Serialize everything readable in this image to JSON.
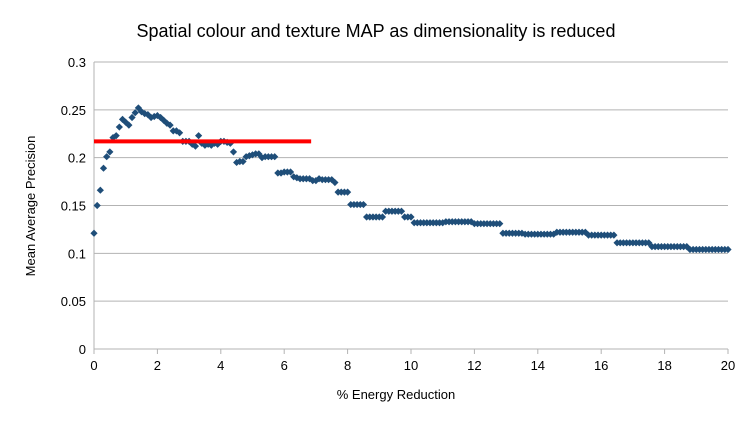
{
  "chart_data": {
    "type": "scatter",
    "title": "Spatial colour and texture MAP as dimensionality is reduced",
    "xlabel": "% Energy Reduction",
    "ylabel": "Mean Average Precision",
    "xlim": [
      0,
      20
    ],
    "ylim": [
      0,
      0.3
    ],
    "xticks": [
      "0",
      "2",
      "4",
      "6",
      "8",
      "10",
      "12",
      "14",
      "16",
      "18",
      "20"
    ],
    "yticks": [
      "0",
      "0.05",
      "0.1",
      "0.15",
      "0.2",
      "0.25",
      "0.3"
    ],
    "grid": "horizontal",
    "legend": "none",
    "marker_color": "#1f4e79",
    "reference_line": {
      "x": [
        0,
        6.85
      ],
      "y": 0.217,
      "color": "#ff0000"
    },
    "points": [
      [
        0.0,
        0.121
      ],
      [
        0.1,
        0.15
      ],
      [
        0.2,
        0.166
      ],
      [
        0.3,
        0.189
      ],
      [
        0.4,
        0.201
      ],
      [
        0.5,
        0.206
      ],
      [
        0.6,
        0.221
      ],
      [
        0.7,
        0.223
      ],
      [
        0.8,
        0.232
      ],
      [
        0.9,
        0.24
      ],
      [
        1.0,
        0.237
      ],
      [
        1.1,
        0.234
      ],
      [
        1.2,
        0.242
      ],
      [
        1.3,
        0.247
      ],
      [
        1.4,
        0.252
      ],
      [
        1.5,
        0.248
      ],
      [
        1.6,
        0.246
      ],
      [
        1.7,
        0.245
      ],
      [
        1.8,
        0.242
      ],
      [
        1.9,
        0.243
      ],
      [
        2.0,
        0.244
      ],
      [
        2.1,
        0.242
      ],
      [
        2.2,
        0.239
      ],
      [
        2.3,
        0.236
      ],
      [
        2.4,
        0.234
      ],
      [
        2.5,
        0.228
      ],
      [
        2.6,
        0.228
      ],
      [
        2.7,
        0.226
      ],
      [
        2.8,
        0.217
      ],
      [
        2.9,
        0.217
      ],
      [
        3.0,
        0.217
      ],
      [
        3.1,
        0.214
      ],
      [
        3.2,
        0.212
      ],
      [
        3.3,
        0.223
      ],
      [
        3.4,
        0.215
      ],
      [
        3.5,
        0.213
      ],
      [
        3.6,
        0.214
      ],
      [
        3.7,
        0.213
      ],
      [
        3.8,
        0.215
      ],
      [
        3.9,
        0.214
      ],
      [
        4.0,
        0.217
      ],
      [
        4.1,
        0.217
      ],
      [
        4.2,
        0.216
      ],
      [
        4.3,
        0.215
      ],
      [
        4.4,
        0.206
      ],
      [
        4.5,
        0.195
      ],
      [
        4.6,
        0.196
      ],
      [
        4.7,
        0.196
      ],
      [
        4.8,
        0.201
      ],
      [
        4.9,
        0.202
      ],
      [
        5.0,
        0.203
      ],
      [
        5.1,
        0.204
      ],
      [
        5.2,
        0.204
      ],
      [
        5.3,
        0.2
      ],
      [
        5.4,
        0.201
      ],
      [
        5.5,
        0.201
      ],
      [
        5.6,
        0.201
      ],
      [
        5.7,
        0.201
      ],
      [
        5.8,
        0.184
      ],
      [
        5.9,
        0.184
      ],
      [
        6.0,
        0.185
      ],
      [
        6.1,
        0.185
      ],
      [
        6.2,
        0.185
      ],
      [
        6.3,
        0.18
      ],
      [
        6.4,
        0.179
      ],
      [
        6.5,
        0.178
      ],
      [
        6.6,
        0.178
      ],
      [
        6.7,
        0.178
      ],
      [
        6.8,
        0.178
      ],
      [
        6.9,
        0.176
      ],
      [
        7.0,
        0.176
      ],
      [
        7.1,
        0.178
      ],
      [
        7.2,
        0.177
      ],
      [
        7.3,
        0.177
      ],
      [
        7.4,
        0.177
      ],
      [
        7.5,
        0.177
      ],
      [
        7.6,
        0.174
      ],
      [
        7.7,
        0.164
      ],
      [
        7.8,
        0.164
      ],
      [
        7.9,
        0.164
      ],
      [
        8.0,
        0.164
      ],
      [
        8.1,
        0.151
      ],
      [
        8.2,
        0.151
      ],
      [
        8.3,
        0.151
      ],
      [
        8.4,
        0.151
      ],
      [
        8.5,
        0.151
      ],
      [
        8.6,
        0.138
      ],
      [
        8.7,
        0.138
      ],
      [
        8.8,
        0.138
      ],
      [
        8.9,
        0.138
      ],
      [
        9.0,
        0.138
      ],
      [
        9.1,
        0.138
      ],
      [
        9.2,
        0.144
      ],
      [
        9.3,
        0.144
      ],
      [
        9.4,
        0.144
      ],
      [
        9.5,
        0.144
      ],
      [
        9.6,
        0.144
      ],
      [
        9.7,
        0.144
      ],
      [
        9.8,
        0.138
      ],
      [
        9.9,
        0.138
      ],
      [
        10.0,
        0.138
      ],
      [
        10.1,
        0.132
      ],
      [
        10.2,
        0.132
      ],
      [
        10.3,
        0.132
      ],
      [
        10.4,
        0.132
      ],
      [
        10.5,
        0.132
      ],
      [
        10.6,
        0.132
      ],
      [
        10.7,
        0.132
      ],
      [
        10.8,
        0.132
      ],
      [
        10.9,
        0.132
      ],
      [
        11.0,
        0.132
      ],
      [
        11.1,
        0.133
      ],
      [
        11.2,
        0.133
      ],
      [
        11.3,
        0.133
      ],
      [
        11.4,
        0.133
      ],
      [
        11.5,
        0.133
      ],
      [
        11.6,
        0.133
      ],
      [
        11.7,
        0.133
      ],
      [
        11.8,
        0.133
      ],
      [
        11.9,
        0.133
      ],
      [
        12.0,
        0.131
      ],
      [
        12.1,
        0.131
      ],
      [
        12.2,
        0.131
      ],
      [
        12.3,
        0.131
      ],
      [
        12.4,
        0.131
      ],
      [
        12.5,
        0.131
      ],
      [
        12.6,
        0.131
      ],
      [
        12.7,
        0.131
      ],
      [
        12.8,
        0.131
      ],
      [
        12.9,
        0.121
      ],
      [
        13.0,
        0.121
      ],
      [
        13.1,
        0.121
      ],
      [
        13.2,
        0.121
      ],
      [
        13.3,
        0.121
      ],
      [
        13.4,
        0.121
      ],
      [
        13.5,
        0.121
      ],
      [
        13.6,
        0.12
      ],
      [
        13.7,
        0.12
      ],
      [
        13.8,
        0.12
      ],
      [
        13.9,
        0.12
      ],
      [
        14.0,
        0.12
      ],
      [
        14.1,
        0.12
      ],
      [
        14.2,
        0.12
      ],
      [
        14.3,
        0.12
      ],
      [
        14.4,
        0.12
      ],
      [
        14.5,
        0.12
      ],
      [
        14.6,
        0.122
      ],
      [
        14.7,
        0.122
      ],
      [
        14.8,
        0.122
      ],
      [
        14.9,
        0.122
      ],
      [
        15.0,
        0.122
      ],
      [
        15.1,
        0.122
      ],
      [
        15.2,
        0.122
      ],
      [
        15.3,
        0.122
      ],
      [
        15.4,
        0.122
      ],
      [
        15.5,
        0.122
      ],
      [
        15.6,
        0.119
      ],
      [
        15.7,
        0.119
      ],
      [
        15.8,
        0.119
      ],
      [
        15.9,
        0.119
      ],
      [
        16.0,
        0.119
      ],
      [
        16.1,
        0.119
      ],
      [
        16.2,
        0.119
      ],
      [
        16.3,
        0.119
      ],
      [
        16.4,
        0.119
      ],
      [
        16.5,
        0.111
      ],
      [
        16.6,
        0.111
      ],
      [
        16.7,
        0.111
      ],
      [
        16.8,
        0.111
      ],
      [
        16.9,
        0.111
      ],
      [
        17.0,
        0.111
      ],
      [
        17.1,
        0.111
      ],
      [
        17.2,
        0.111
      ],
      [
        17.3,
        0.111
      ],
      [
        17.4,
        0.111
      ],
      [
        17.5,
        0.111
      ],
      [
        17.6,
        0.107
      ],
      [
        17.7,
        0.107
      ],
      [
        17.8,
        0.107
      ],
      [
        17.9,
        0.107
      ],
      [
        18.0,
        0.107
      ],
      [
        18.1,
        0.107
      ],
      [
        18.2,
        0.107
      ],
      [
        18.3,
        0.107
      ],
      [
        18.4,
        0.107
      ],
      [
        18.5,
        0.107
      ],
      [
        18.6,
        0.107
      ],
      [
        18.7,
        0.107
      ],
      [
        18.8,
        0.104
      ],
      [
        18.9,
        0.104
      ],
      [
        19.0,
        0.104
      ],
      [
        19.1,
        0.104
      ],
      [
        19.2,
        0.104
      ],
      [
        19.3,
        0.104
      ],
      [
        19.4,
        0.104
      ],
      [
        19.5,
        0.104
      ],
      [
        19.6,
        0.104
      ],
      [
        19.7,
        0.104
      ],
      [
        19.8,
        0.104
      ],
      [
        19.9,
        0.104
      ],
      [
        20.0,
        0.104
      ]
    ]
  }
}
